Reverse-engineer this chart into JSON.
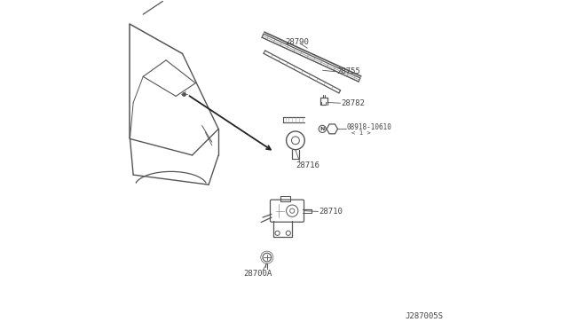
{
  "bg_color": "#ffffff",
  "line_color": "#555555",
  "text_color": "#444444",
  "fig_width": 6.4,
  "fig_height": 3.72,
  "dpi": 100,
  "diagram_code": "J287005S"
}
